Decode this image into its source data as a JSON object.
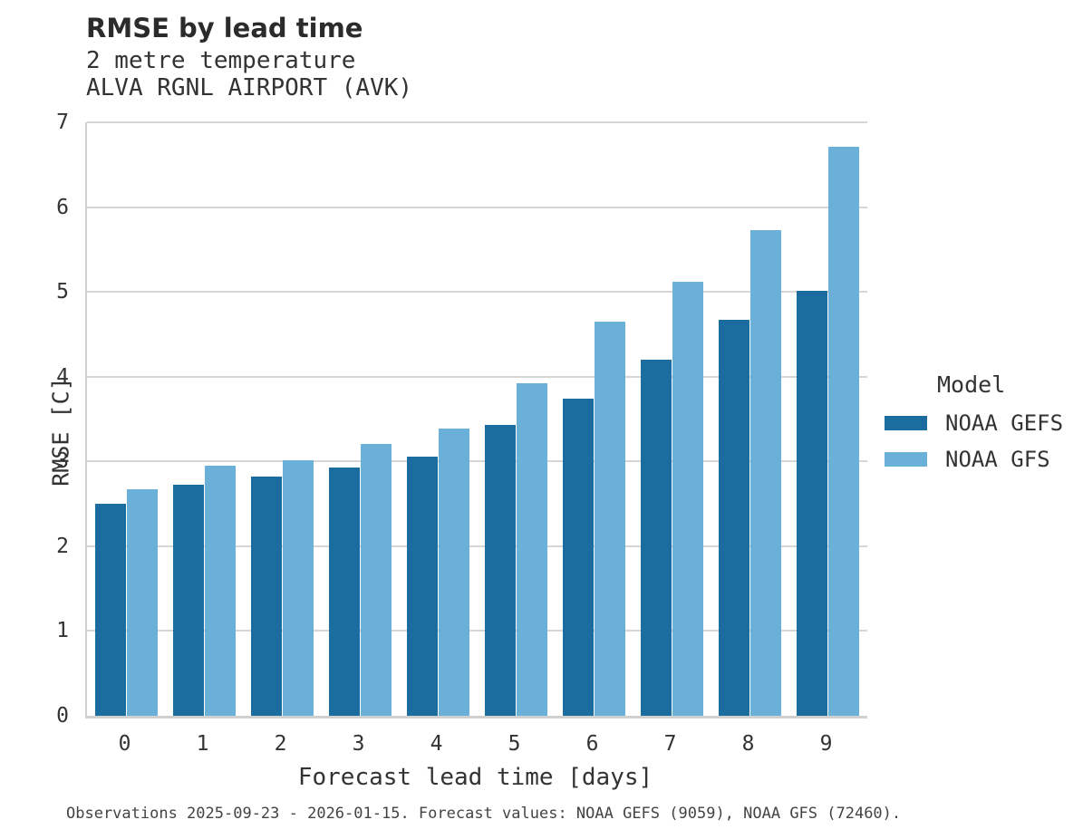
{
  "header": {
    "title": "RMSE by lead time",
    "subtitle": "2 metre temperature",
    "station": "ALVA RGNL AIRPORT (AVK)"
  },
  "chart_data": {
    "type": "bar",
    "title": "RMSE by lead time",
    "subtitle": "2 metre temperature",
    "station": "ALVA RGNL AIRPORT (AVK)",
    "categories": [
      "0",
      "1",
      "2",
      "3",
      "4",
      "5",
      "6",
      "7",
      "8",
      "9"
    ],
    "series": [
      {
        "name": "NOAA GEFS",
        "color": "#1a6d9e",
        "values": [
          2.5,
          2.72,
          2.82,
          2.93,
          3.06,
          3.43,
          3.74,
          4.2,
          4.67,
          5.01
        ]
      },
      {
        "name": "NOAA GFS",
        "color": "#6bb0d8",
        "values": [
          2.67,
          2.95,
          3.01,
          3.21,
          3.39,
          3.92,
          4.65,
          5.12,
          5.73,
          6.71
        ]
      }
    ],
    "xlabel": "Forecast lead time [days]",
    "ylabel": "RMSE [C]",
    "ylim": [
      0,
      7
    ],
    "yticks": [
      0,
      1,
      2,
      3,
      4,
      5,
      6,
      7
    ],
    "grid": true,
    "legend_title": "Model",
    "legend_position": "right"
  },
  "caption": "Observations 2025-09-23 - 2026-01-15. Forecast values: NOAA GEFS (9059), NOAA GFS (72460).",
  "colors": {
    "series_dark": "#1a6d9e",
    "series_light": "#6bb0d8",
    "gridline": "#d6d6d6",
    "axis": "#d0d0d0",
    "title_text": "#2b2b2b",
    "body_text": "#333333",
    "caption_text": "#444444"
  }
}
